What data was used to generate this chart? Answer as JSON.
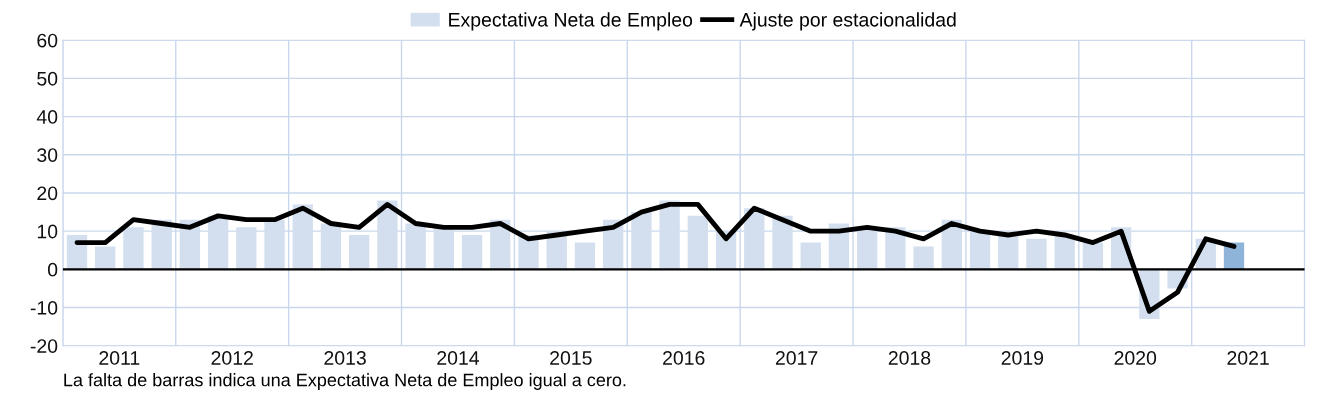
{
  "chart_data": {
    "type": "bar",
    "x": [
      2011.125,
      2011.375,
      2011.625,
      2011.875,
      2012.125,
      2012.375,
      2012.625,
      2012.875,
      2013.125,
      2013.375,
      2013.625,
      2013.875,
      2014.125,
      2014.375,
      2014.625,
      2014.875,
      2015.125,
      2015.375,
      2015.625,
      2015.875,
      2016.125,
      2016.375,
      2016.625,
      2016.875,
      2017.125,
      2017.375,
      2017.625,
      2017.875,
      2018.125,
      2018.375,
      2018.625,
      2018.875,
      2019.125,
      2019.375,
      2019.625,
      2019.875,
      2020.125,
      2020.375,
      2020.625,
      2020.875,
      2021.125,
      2021.375
    ],
    "series": [
      {
        "name": "Expectativa Neta de Empleo",
        "color": "#d3dfee",
        "colors": [
          "#d3dfee",
          "#d3dfee",
          "#d3dfee",
          "#d3dfee",
          "#d3dfee",
          "#d3dfee",
          "#d3dfee",
          "#d3dfee",
          "#d3dfee",
          "#d3dfee",
          "#d3dfee",
          "#d3dfee",
          "#d3dfee",
          "#d3dfee",
          "#d3dfee",
          "#d3dfee",
          "#d3dfee",
          "#d3dfee",
          "#d3dfee",
          "#d3dfee",
          "#d3dfee",
          "#d3dfee",
          "#d3dfee",
          "#d3dfee",
          "#d3dfee",
          "#d3dfee",
          "#d3dfee",
          "#d3dfee",
          "#d3dfee",
          "#d3dfee",
          "#d3dfee",
          "#d3dfee",
          "#d3dfee",
          "#d3dfee",
          "#d3dfee",
          "#d3dfee",
          "#d3dfee",
          "#d3dfee",
          "#d3dfee",
          "#d3dfee",
          "#d3dfee",
          "#8fb4d9"
        ],
        "values": [
          9,
          6,
          11,
          13,
          13,
          14,
          11,
          13,
          17,
          12,
          9,
          18,
          12,
          11,
          9,
          13,
          9,
          10,
          7,
          13,
          15,
          18,
          14,
          10,
          16,
          14,
          7,
          12,
          11,
          11,
          6,
          13,
          10,
          9,
          8,
          9,
          7,
          11,
          -13,
          -5,
          8,
          7
        ]
      },
      {
        "name": "Ajuste por estacionalidad",
        "type": "line",
        "color": "#000000",
        "values": [
          7,
          7,
          13,
          12,
          11,
          14,
          13,
          13,
          16,
          12,
          11,
          17,
          12,
          11,
          11,
          12,
          8,
          9,
          10,
          11,
          15,
          17,
          17,
          8,
          16,
          13,
          10,
          10,
          11,
          10,
          8,
          12,
          10,
          9,
          10,
          9,
          7,
          10,
          -11,
          -6,
          8,
          6
        ]
      }
    ],
    "xlim": [
      2011,
      2022
    ],
    "xticks": [
      {
        "value": 2011,
        "label": null
      },
      {
        "value": 2012,
        "label": null
      },
      {
        "value": 2013,
        "label": null
      },
      {
        "value": 2014,
        "label": null
      },
      {
        "value": 2015,
        "label": null
      },
      {
        "value": 2016,
        "label": null
      },
      {
        "value": 2017,
        "label": null
      },
      {
        "value": 2018,
        "label": null
      },
      {
        "value": 2019,
        "label": null
      },
      {
        "value": 2020,
        "label": null
      },
      {
        "value": 2021,
        "label": null
      },
      {
        "value": 2022,
        "label": null
      },
      {
        "value": 2011.5,
        "label": "2011"
      },
      {
        "value": 2012.5,
        "label": "2012"
      },
      {
        "value": 2013.5,
        "label": "2013"
      },
      {
        "value": 2014.5,
        "label": "2014"
      },
      {
        "value": 2015.5,
        "label": "2015"
      },
      {
        "value": 2016.5,
        "label": "2016"
      },
      {
        "value": 2017.5,
        "label": "2017"
      },
      {
        "value": 2018.5,
        "label": "2018"
      },
      {
        "value": 2019.5,
        "label": "2019"
      },
      {
        "value": 2020.5,
        "label": "2020"
      },
      {
        "value": 2021.5,
        "label": "2021"
      }
    ],
    "ylim": [
      -20,
      60
    ],
    "yticks": [
      -20,
      -10,
      0,
      10,
      20,
      30,
      40,
      50,
      60
    ],
    "grid": true,
    "legend": "top",
    "ref_lines": [
      {
        "axis": "y",
        "value": 0,
        "color": "#000000"
      }
    ],
    "annotations": [
      "La falta de barras indica una Expectativa Neta de Empleo igual a cero."
    ]
  }
}
